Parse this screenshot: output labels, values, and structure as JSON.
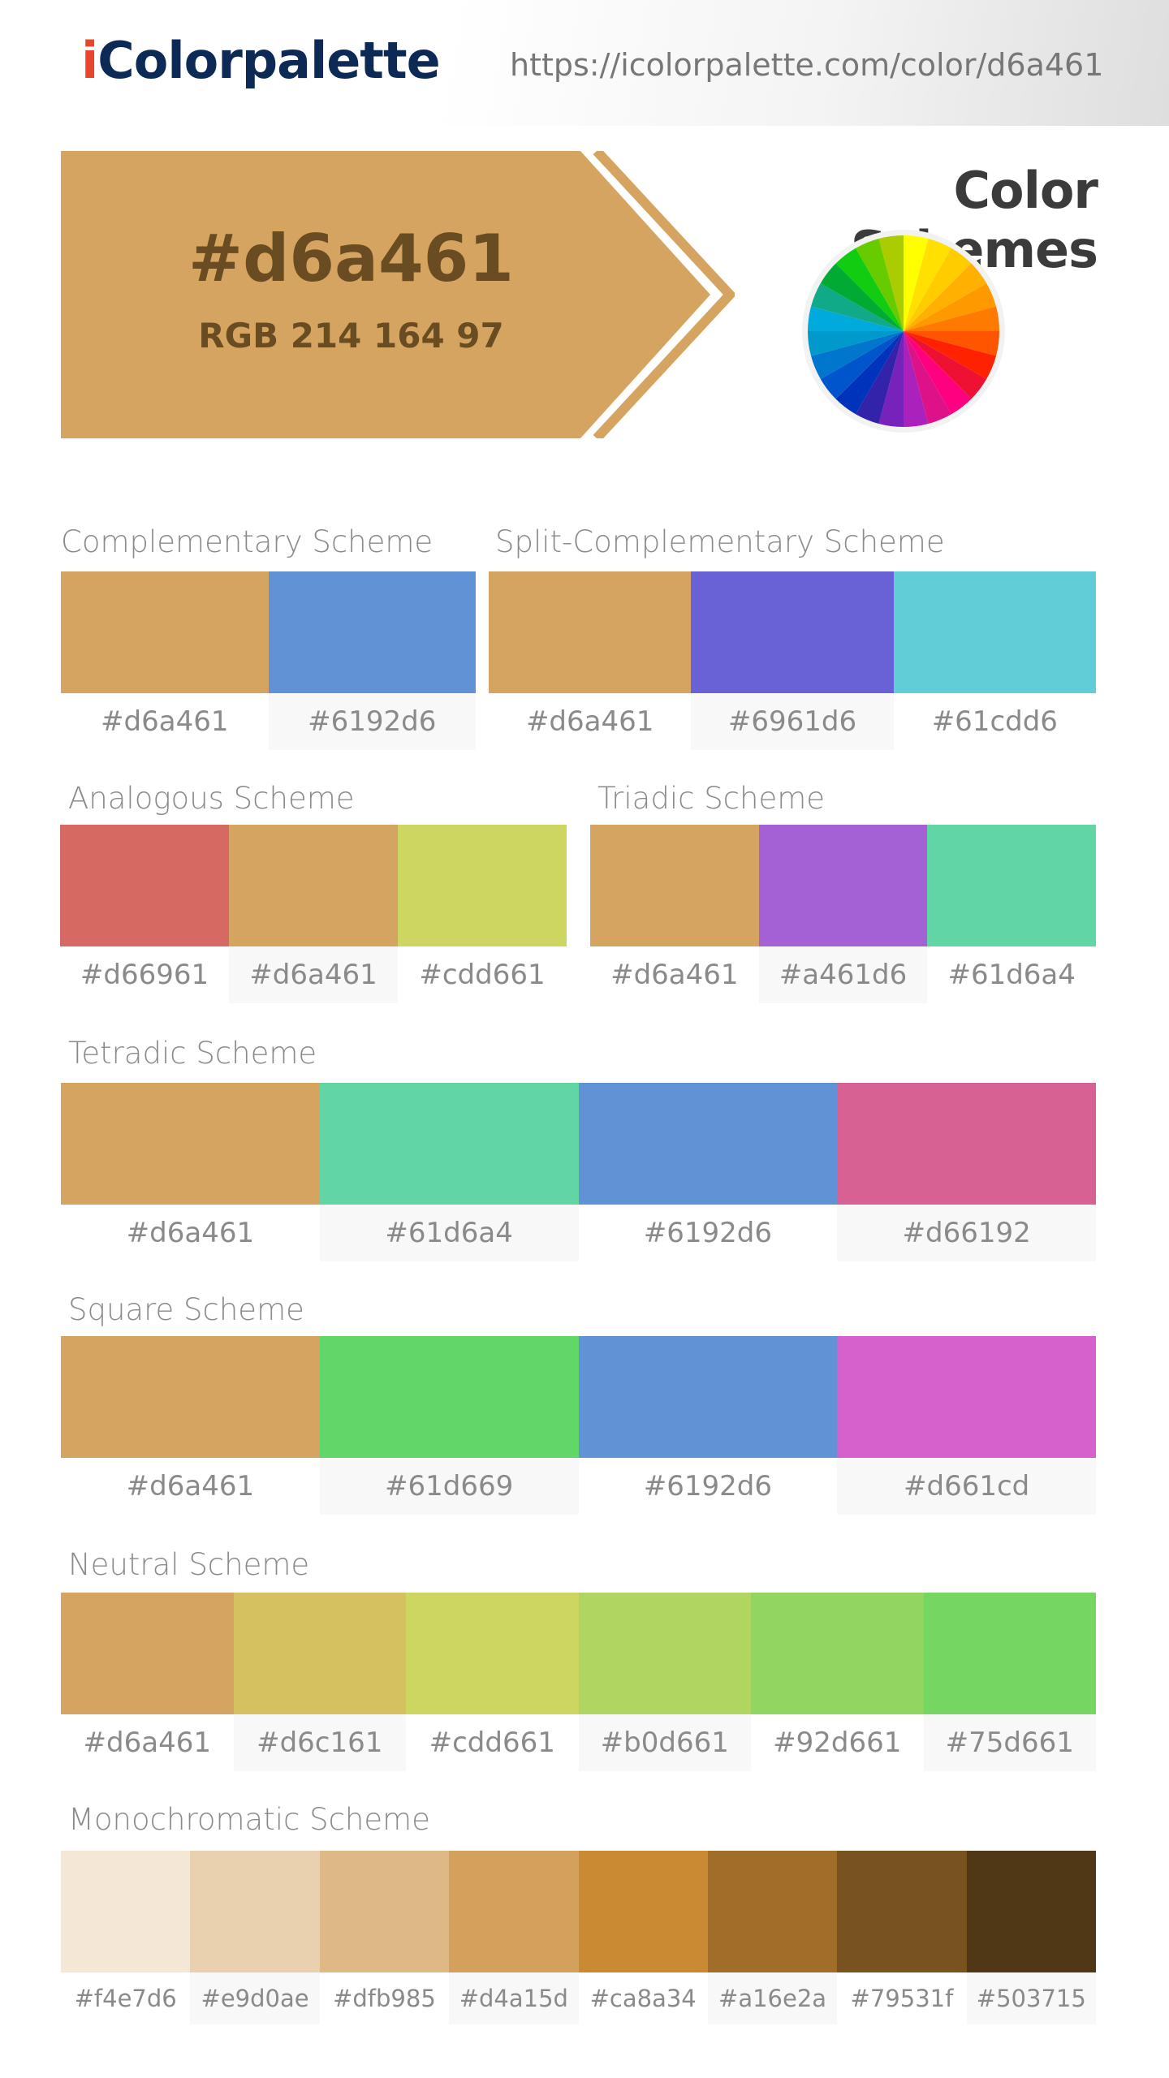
{
  "header": {
    "logo_i": "i",
    "logo_rest": "Colorpalette",
    "url": "https://icolorpalette.com/color/d6a461"
  },
  "hero": {
    "hex": "#d6a461",
    "rgb": "RGB 214 164 97",
    "color": "#d6a461",
    "text_color": "#6a4c22",
    "schemes_title": "Color Schemes"
  },
  "color_wheel": {
    "segments": [
      "#ffff00",
      "#ffe000",
      "#ffcc00",
      "#ffb000",
      "#ff9900",
      "#ff7a00",
      "#ff5500",
      "#ff2200",
      "#ee1133",
      "#ff0080",
      "#dd1188",
      "#aa22bb",
      "#7722bb",
      "#3322aa",
      "#0033bb",
      "#0055cc",
      "#0077cc",
      "#0099cc",
      "#00aadd",
      "#11aa88",
      "#00aa33",
      "#11cc11",
      "#66cc00",
      "#aacc00"
    ]
  },
  "schemes": {
    "complementary": {
      "title": "Complementary Scheme",
      "colors": [
        "#d6a461",
        "#6192d6"
      ],
      "labels": [
        "#d6a461",
        "#6192d6"
      ]
    },
    "split_complementary": {
      "title": "Split-Complementary Scheme",
      "colors": [
        "#d6a461",
        "#6961d6",
        "#61cdd6"
      ],
      "labels": [
        "#d6a461",
        "#6961d6",
        "#61cdd6"
      ]
    },
    "analogous": {
      "title": "Analogous Scheme",
      "colors": [
        "#d66961",
        "#d6a461",
        "#cdd661"
      ],
      "labels": [
        "#d66961",
        "#d6a461",
        "#cdd661"
      ]
    },
    "triadic": {
      "title": "Triadic Scheme",
      "colors": [
        "#d6a461",
        "#a461d6",
        "#61d6a4"
      ],
      "labels": [
        "#d6a461",
        "#a461d6",
        "#61d6a4"
      ]
    },
    "tetradic": {
      "title": "Tetradic Scheme",
      "colors": [
        "#d6a461",
        "#61d6a4",
        "#6192d6",
        "#d66192"
      ],
      "labels": [
        "#d6a461",
        "#61d6a4",
        "#6192d6",
        "#d66192"
      ]
    },
    "square": {
      "title": "Square Scheme",
      "colors": [
        "#d6a461",
        "#61d669",
        "#6192d6",
        "#d661cd"
      ],
      "labels": [
        "#d6a461",
        "#61d669",
        "#6192d6",
        "#d661cd"
      ]
    },
    "neutral": {
      "title": "Neutral Scheme",
      "colors": [
        "#d6a461",
        "#d6c161",
        "#cdd661",
        "#b0d661",
        "#92d661",
        "#75d661"
      ],
      "labels": [
        "#d6a461",
        "#d6c161",
        "#cdd661",
        "#b0d661",
        "#92d661",
        "#75d661"
      ]
    },
    "monochromatic": {
      "title": "Monochromatic Scheme",
      "colors": [
        "#f4e7d6",
        "#e9d0ae",
        "#dfb985",
        "#d4a15d",
        "#ca8a34",
        "#a16e2a",
        "#79531f",
        "#503715"
      ],
      "labels": [
        "#f4e7d6",
        "#e9d0ae",
        "#dfb985",
        "#d4a15d",
        "#ca8a34",
        "#a16e2a",
        "#79531f",
        "#503715"
      ]
    }
  }
}
